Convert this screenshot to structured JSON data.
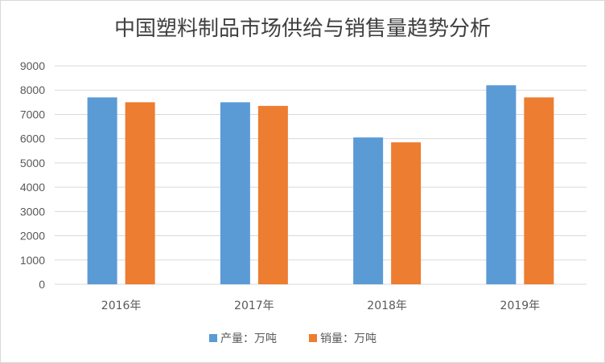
{
  "chart_data": {
    "type": "bar",
    "title": "中国塑料制品市场供给与销售量趋势分析",
    "xlabel": "",
    "ylabel": "",
    "categories": [
      "2016年",
      "2017年",
      "2018年",
      "2019年"
    ],
    "series": [
      {
        "name": "产量：万吨",
        "color": "#5b9bd5",
        "values": [
          7700,
          7500,
          6050,
          8200
        ]
      },
      {
        "name": "销量：万吨",
        "color": "#ed7d31",
        "values": [
          7500,
          7350,
          5850,
          7700
        ]
      }
    ],
    "ylim": [
      0,
      9000
    ],
    "yticks": [
      "0",
      "1000",
      "2000",
      "3000",
      "4000",
      "5000",
      "6000",
      "7000",
      "8000",
      "9000"
    ],
    "grid": true,
    "legend_position": "bottom"
  }
}
